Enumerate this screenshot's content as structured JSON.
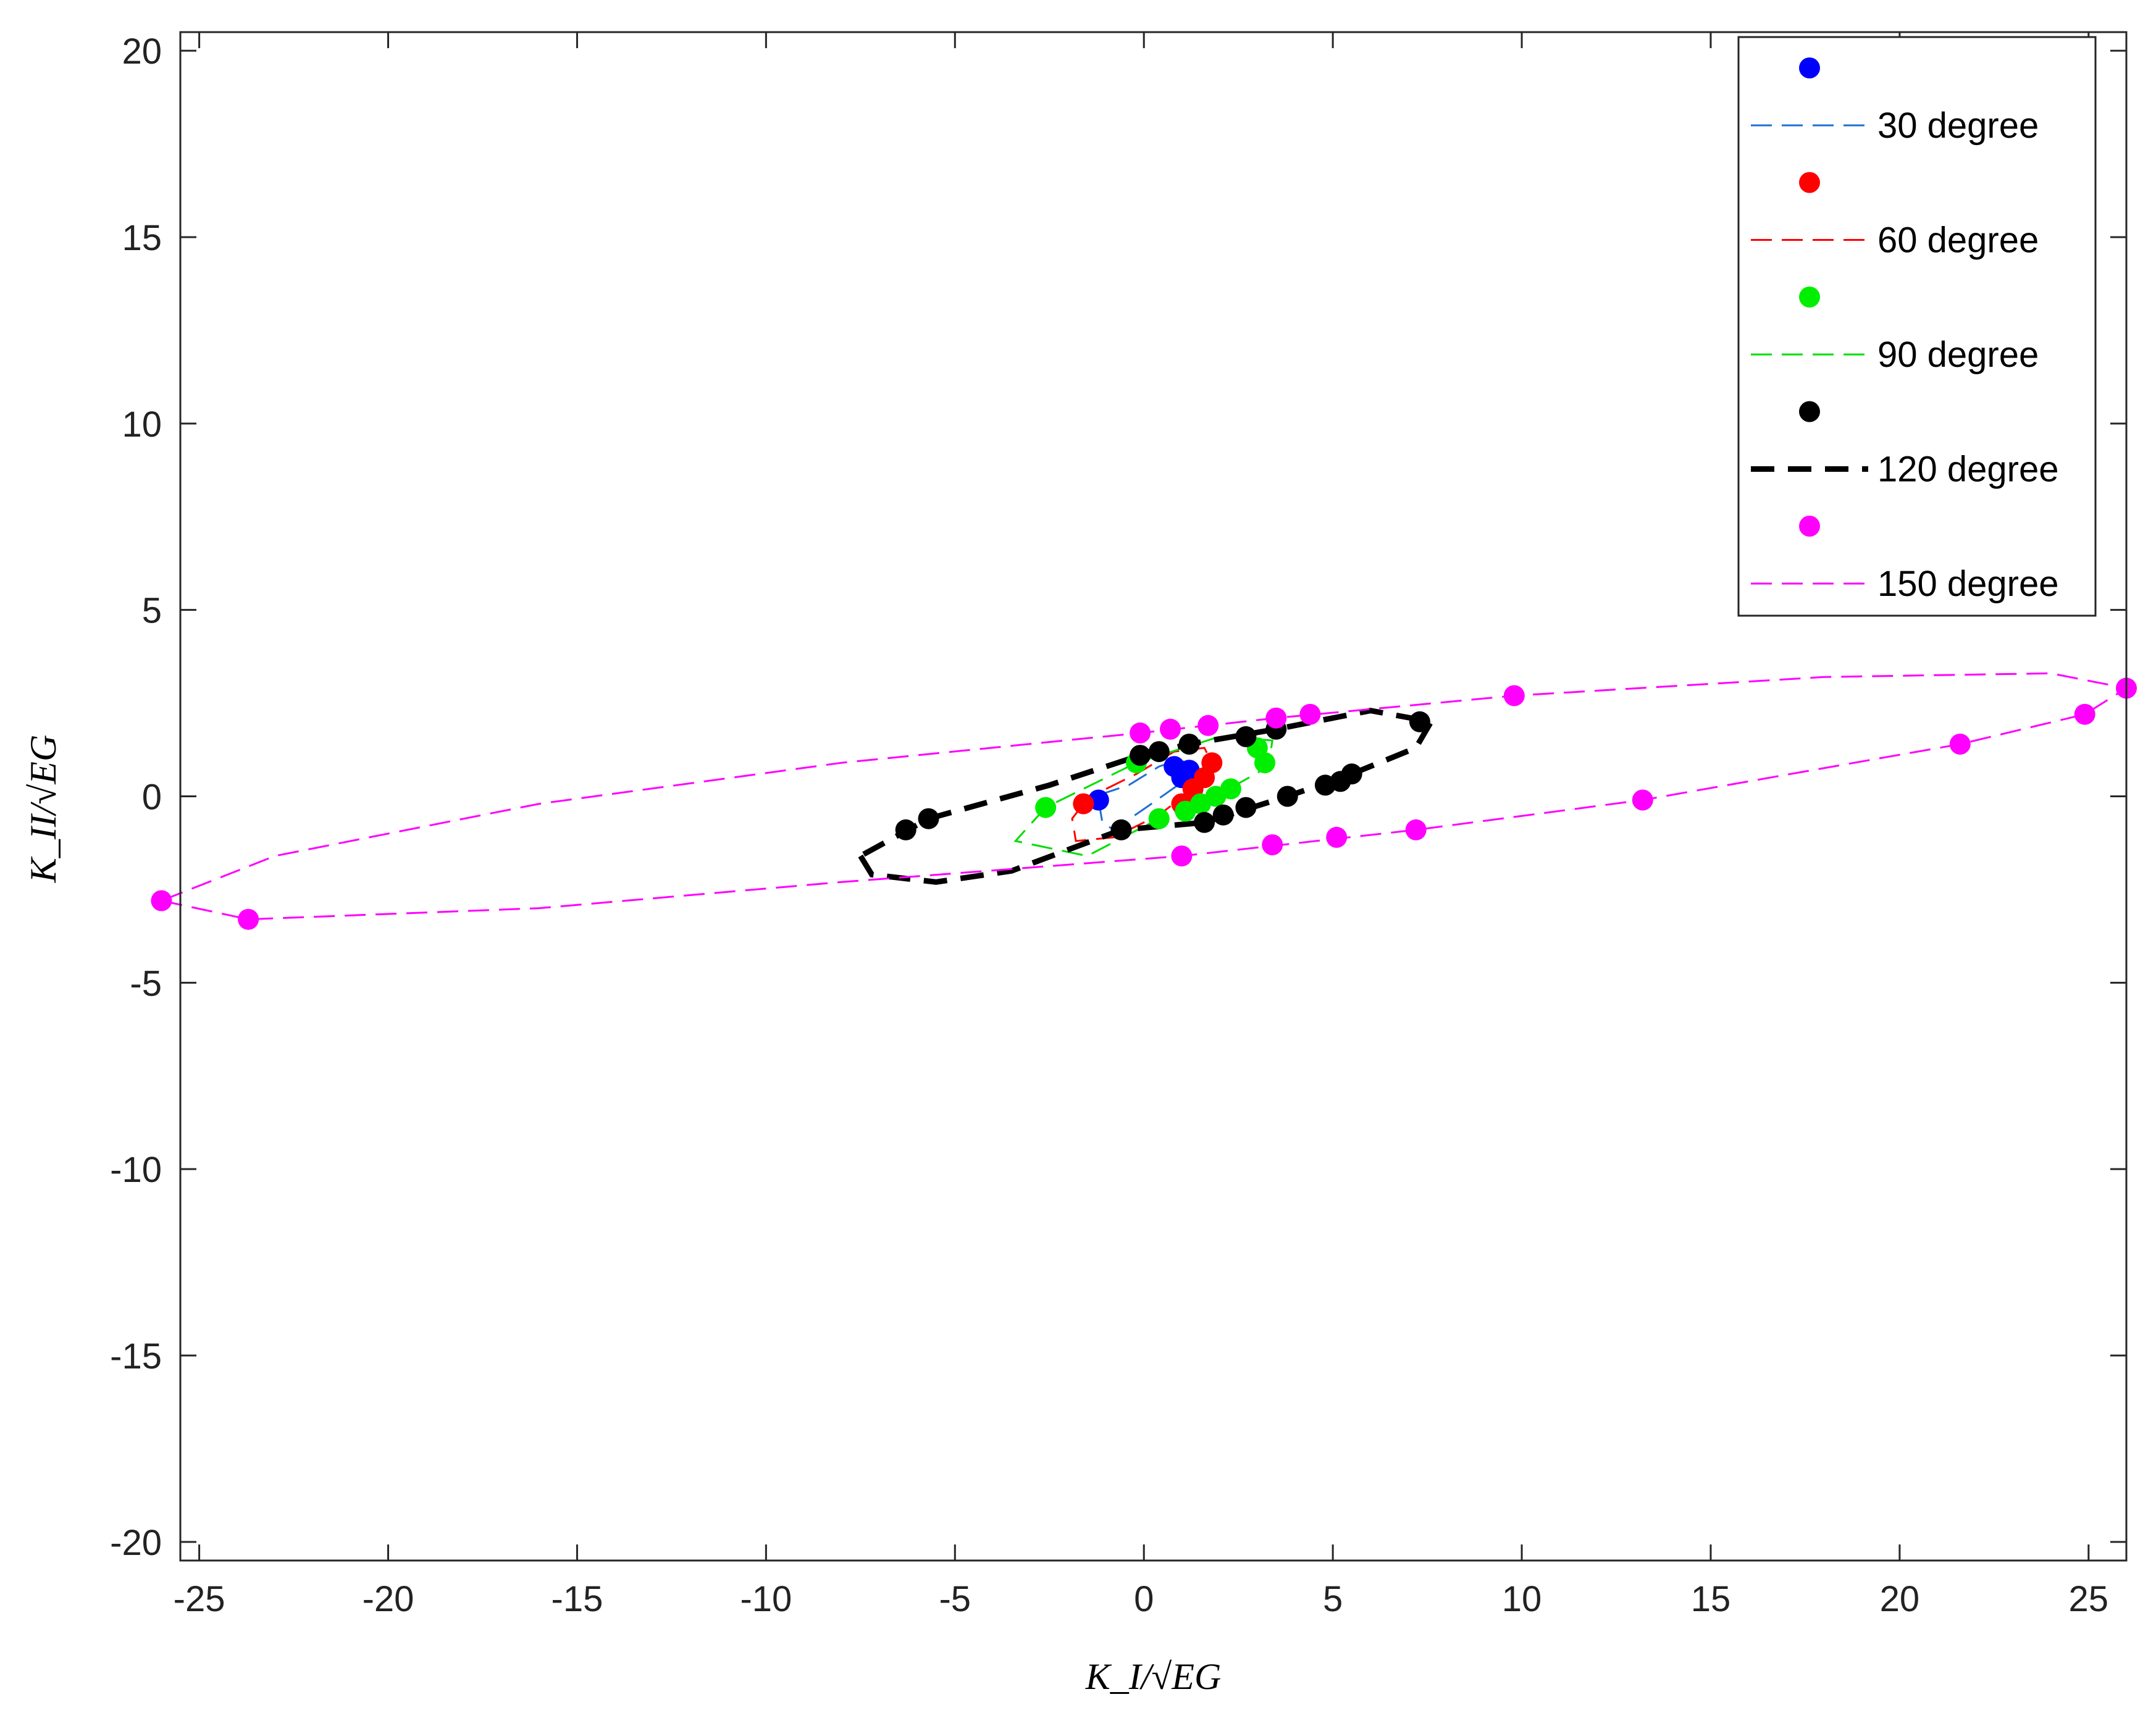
{
  "chart_data": {
    "type": "scatter",
    "xlabel": "K_I/√EG",
    "ylabel": "K_II/√EG",
    "xlim": [
      -25.5,
      26
    ],
    "ylim": [
      -20.5,
      20.5
    ],
    "x_ticks": [
      -25,
      -20,
      -15,
      -10,
      -5,
      0,
      5,
      10,
      15,
      20,
      25
    ],
    "y_ticks": [
      -20,
      -15,
      -10,
      -5,
      0,
      5,
      10,
      15,
      20
    ],
    "grid": false,
    "legend_position": "top-right",
    "series": [
      {
        "name": "30 degree",
        "color": "#0000ff",
        "line_color": "#1f6fd0",
        "line_width": 3,
        "points": [
          [
            -1.2,
            -0.1
          ],
          [
            0.8,
            0.8
          ],
          [
            1.0,
            0.5
          ],
          [
            1.2,
            0.7
          ]
        ],
        "curve": [
          [
            -1.2,
            -0.1
          ],
          [
            -1.1,
            -0.7
          ],
          [
            -0.8,
            -0.9
          ],
          [
            0.2,
            -0.2
          ],
          [
            0.9,
            0.3
          ],
          [
            1.2,
            0.7
          ],
          [
            1.0,
            1.0
          ],
          [
            0.4,
            0.8
          ],
          [
            -0.4,
            0.3
          ],
          [
            -1.0,
            0.1
          ],
          [
            -1.2,
            -0.1
          ]
        ]
      },
      {
        "name": "60 degree",
        "color": "#ff0000",
        "line_color": "#ff0000",
        "line_width": 3,
        "points": [
          [
            -1.6,
            -0.2
          ],
          [
            1.0,
            -0.2
          ],
          [
            1.3,
            0.2
          ],
          [
            1.6,
            0.5
          ],
          [
            1.8,
            0.9
          ]
        ],
        "curve": [
          [
            -1.6,
            -0.2
          ],
          [
            -1.9,
            -0.6
          ],
          [
            -1.8,
            -1.2
          ],
          [
            -0.8,
            -1.1
          ],
          [
            0.4,
            -0.5
          ],
          [
            1.3,
            0.2
          ],
          [
            1.8,
            0.9
          ],
          [
            1.6,
            1.3
          ],
          [
            0.8,
            1.2
          ],
          [
            -0.2,
            0.6
          ],
          [
            -1.2,
            0.1
          ],
          [
            -1.6,
            -0.2
          ]
        ]
      },
      {
        "name": "90 degree",
        "color": "#00ee00",
        "line_color": "#00dd00",
        "line_width": 3,
        "points": [
          [
            -2.6,
            -0.3
          ],
          [
            -0.2,
            0.9
          ],
          [
            0.4,
            -0.6
          ],
          [
            1.1,
            -0.4
          ],
          [
            1.5,
            -0.2
          ],
          [
            1.9,
            0.0
          ],
          [
            2.3,
            0.2
          ],
          [
            3.2,
            0.9
          ],
          [
            3.0,
            1.3
          ]
        ],
        "curve": [
          [
            -2.6,
            -0.3
          ],
          [
            -3.4,
            -1.2
          ],
          [
            -1.5,
            -1.6
          ],
          [
            0.4,
            -0.6
          ],
          [
            1.9,
            0.0
          ],
          [
            3.3,
            0.8
          ],
          [
            3.4,
            1.5
          ],
          [
            2.0,
            1.6
          ],
          [
            -0.2,
            0.9
          ],
          [
            -1.6,
            0.2
          ],
          [
            -2.6,
            -0.3
          ]
        ]
      },
      {
        "name": "120 degree",
        "color": "#000000",
        "line_color": "#000000",
        "line_width": 9,
        "points": [
          [
            -6.3,
            -0.9
          ],
          [
            -5.7,
            -0.6
          ],
          [
            -0.1,
            1.1
          ],
          [
            0.4,
            1.2
          ],
          [
            1.2,
            1.4
          ],
          [
            2.7,
            1.6
          ],
          [
            3.5,
            1.8
          ],
          [
            7.3,
            2.0
          ],
          [
            -0.6,
            -0.9
          ],
          [
            1.6,
            -0.7
          ],
          [
            2.1,
            -0.5
          ],
          [
            2.7,
            -0.3
          ],
          [
            3.8,
            0.0
          ],
          [
            4.8,
            0.3
          ],
          [
            5.2,
            0.4
          ],
          [
            5.5,
            0.6
          ]
        ],
        "curve": [
          [
            -7.5,
            -1.6
          ],
          [
            -7.2,
            -2.1
          ],
          [
            -5.5,
            -2.3
          ],
          [
            -3.5,
            -2.0
          ],
          [
            -0.6,
            -0.9
          ],
          [
            1.6,
            -0.7
          ],
          [
            3.8,
            0.0
          ],
          [
            5.5,
            0.6
          ],
          [
            7.2,
            1.3
          ],
          [
            7.6,
            2.0
          ],
          [
            6.0,
            2.3
          ],
          [
            3.5,
            1.8
          ],
          [
            1.2,
            1.4
          ],
          [
            -0.1,
            1.1
          ],
          [
            -2.5,
            0.3
          ],
          [
            -5.7,
            -0.6
          ],
          [
            -7.5,
            -1.6
          ]
        ]
      },
      {
        "name": "150 degree",
        "color": "#ff00ff",
        "line_color": "#ff00ff",
        "line_width": 3,
        "points": [
          [
            -26.0,
            -2.8
          ],
          [
            -23.7,
            -3.3
          ],
          [
            1.0,
            -1.6
          ],
          [
            3.4,
            -1.3
          ],
          [
            5.1,
            -1.1
          ],
          [
            7.2,
            -0.9
          ],
          [
            13.2,
            -0.1
          ],
          [
            21.6,
            1.4
          ],
          [
            24.9,
            2.2
          ],
          [
            26.0,
            2.9
          ],
          [
            9.8,
            2.7
          ],
          [
            4.4,
            2.2
          ],
          [
            3.5,
            2.1
          ],
          [
            1.7,
            1.9
          ],
          [
            0.7,
            1.8
          ],
          [
            -0.1,
            1.7
          ]
        ],
        "curve": [
          [
            -26.0,
            -2.8
          ],
          [
            -23.7,
            -3.3
          ],
          [
            -16.0,
            -3.0
          ],
          [
            -8.0,
            -2.3
          ],
          [
            1.0,
            -1.6
          ],
          [
            7.2,
            -0.9
          ],
          [
            13.2,
            -0.1
          ],
          [
            21.6,
            1.4
          ],
          [
            24.9,
            2.2
          ],
          [
            26.0,
            2.9
          ],
          [
            24.0,
            3.3
          ],
          [
            18.0,
            3.2
          ],
          [
            9.8,
            2.7
          ],
          [
            3.5,
            2.1
          ],
          [
            -0.1,
            1.7
          ],
          [
            -8.0,
            0.9
          ],
          [
            -16.0,
            -0.2
          ],
          [
            -23.0,
            -1.6
          ],
          [
            -26.0,
            -2.8
          ]
        ]
      }
    ]
  }
}
